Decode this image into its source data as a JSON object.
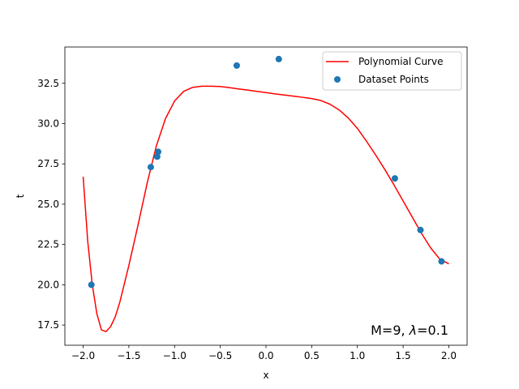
{
  "chart_data": {
    "type": "scatter",
    "title": "",
    "xlabel": "x",
    "ylabel": "t",
    "xlim": [
      -2.2,
      2.2
    ],
    "ylim": [
      16.25,
      34.75
    ],
    "xticks": [
      -2.0,
      -1.5,
      -1.0,
      -0.5,
      0.0,
      0.5,
      1.0,
      1.5,
      2.0
    ],
    "xtick_labels": [
      "−2.0",
      "−1.5",
      "−1.0",
      "−0.5",
      "0.0",
      "0.5",
      "1.0",
      "1.5",
      "2.0"
    ],
    "yticks": [
      17.5,
      20.0,
      22.5,
      25.0,
      27.5,
      30.0,
      32.5
    ],
    "ytick_labels": [
      "17.5",
      "20.0",
      "22.5",
      "25.0",
      "27.5",
      "30.0",
      "32.5"
    ],
    "grid": false,
    "legend": "upper right",
    "annotation": {
      "prefix": "M=9, ",
      "lambda_symbol": "λ",
      "suffix": "=0.1"
    },
    "series": [
      {
        "name": "Polynomial Curve",
        "kind": "line",
        "color": "#ff0000",
        "x": [
          -2.0,
          -1.95,
          -1.9,
          -1.85,
          -1.8,
          -1.75,
          -1.7,
          -1.65,
          -1.6,
          -1.5,
          -1.4,
          -1.3,
          -1.2,
          -1.1,
          -1.0,
          -0.9,
          -0.8,
          -0.7,
          -0.6,
          -0.5,
          -0.4,
          -0.3,
          -0.2,
          -0.1,
          0.0,
          0.1,
          0.2,
          0.3,
          0.4,
          0.5,
          0.6,
          0.7,
          0.8,
          0.9,
          1.0,
          1.1,
          1.2,
          1.3,
          1.4,
          1.5,
          1.6,
          1.7,
          1.8,
          1.9,
          2.0
        ],
        "y": [
          26.7,
          22.7,
          20.0,
          18.2,
          17.2,
          17.1,
          17.4,
          18.0,
          18.9,
          21.2,
          23.7,
          26.3,
          28.6,
          30.3,
          31.4,
          32.0,
          32.25,
          32.32,
          32.32,
          32.3,
          32.23,
          32.15,
          32.08,
          32.0,
          31.92,
          31.84,
          31.77,
          31.7,
          31.63,
          31.55,
          31.43,
          31.2,
          30.85,
          30.35,
          29.7,
          28.9,
          28.05,
          27.15,
          26.2,
          25.2,
          24.2,
          23.2,
          22.3,
          21.6,
          21.3
        ]
      },
      {
        "name": "Dataset Points",
        "kind": "scatter",
        "color": "#1f77b4",
        "x": [
          -1.91,
          -1.26,
          -1.19,
          -1.18,
          -0.32,
          0.14,
          1.41,
          1.69,
          1.92
        ],
        "y": [
          20.0,
          27.3,
          27.95,
          28.25,
          33.6,
          34.0,
          26.6,
          23.4,
          21.45
        ]
      }
    ]
  }
}
